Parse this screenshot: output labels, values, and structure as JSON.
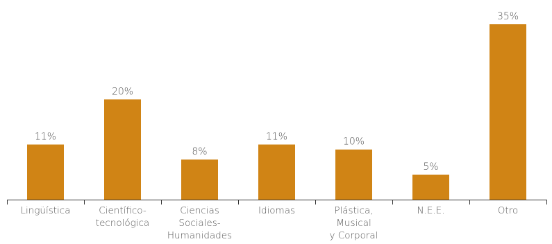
{
  "chart_data": {
    "type": "bar",
    "categories": [
      [
        "Lingüística"
      ],
      [
        "Científico-",
        "tecnológica"
      ],
      [
        "Ciencias",
        "Sociales-",
        "Humanidades"
      ],
      [
        "Idiomas"
      ],
      [
        "Plástica,",
        "Musical",
        "y Corporal"
      ],
      [
        "N.E.E."
      ],
      [
        "Otro"
      ]
    ],
    "values": [
      11,
      20,
      8,
      11,
      10,
      5,
      35
    ],
    "value_labels": [
      "11%",
      "20%",
      "8%",
      "11%",
      "10%",
      "5%",
      "35%"
    ],
    "title": "",
    "xlabel": "",
    "ylabel": "",
    "ylim": [
      0,
      35
    ],
    "grid": false,
    "legend": "none",
    "bar_color": "#d08415"
  }
}
